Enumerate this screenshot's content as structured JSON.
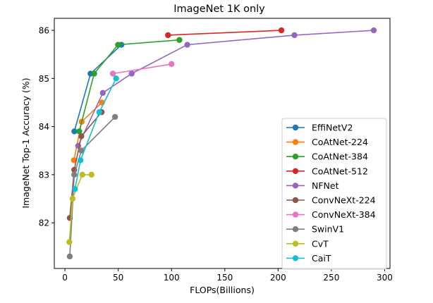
{
  "chart_data": {
    "type": "line",
    "title": "ImageNet 1K only",
    "xlabel": "FLOPs(Billions)",
    "ylabel": "ImageNet Top-1 Accuracy (%)",
    "xlim": [
      -10,
      305
    ],
    "ylim": [
      81.05,
      86.25
    ],
    "xticks": [
      0,
      50,
      100,
      150,
      200,
      250,
      300
    ],
    "yticks": [
      82,
      83,
      84,
      85,
      86
    ],
    "grid": false,
    "legend_position": "lower-right",
    "series": [
      {
        "name": "EffiNetV2",
        "color": "#1f77b4",
        "x": [
          8.8,
          24,
          53
        ],
        "y": [
          83.9,
          85.1,
          85.7
        ]
      },
      {
        "name": "CoAtNet-224",
        "color": "#ff7f0e",
        "x": [
          8.4,
          15.7,
          34.7
        ],
        "y": [
          83.3,
          84.1,
          84.5
        ]
      },
      {
        "name": "CoAtNet-384",
        "color": "#2ca02c",
        "x": [
          13.4,
          27.4,
          49.8,
          107.4
        ],
        "y": [
          83.9,
          85.1,
          85.7,
          85.8
        ]
      },
      {
        "name": "CoAtNet-512",
        "color": "#d62728",
        "x": [
          96.7,
          203.1
        ],
        "y": [
          85.9,
          86.0
        ]
      },
      {
        "name": "NFNet",
        "color": "#9467bd",
        "x": [
          12.4,
          35.5,
          62.6,
          114.8,
          215.3,
          289.8
        ],
        "y": [
          83.6,
          84.7,
          85.1,
          85.7,
          85.9,
          86.0
        ]
      },
      {
        "name": "ConvNeXt-224",
        "color": "#8c564b",
        "x": [
          4.5,
          8.7,
          15.4,
          34.4
        ],
        "y": [
          82.1,
          83.1,
          83.8,
          84.3
        ]
      },
      {
        "name": "ConvNeXt-384",
        "color": "#e377c2",
        "x": [
          45.0,
          100.0
        ],
        "y": [
          85.1,
          85.3
        ]
      },
      {
        "name": "SwinV1",
        "color": "#7f7f7f",
        "x": [
          4.5,
          8.7,
          15.4,
          47.0
        ],
        "y": [
          81.3,
          83.0,
          83.5,
          84.2
        ]
      },
      {
        "name": "CvT",
        "color": "#bcbd22",
        "x": [
          4.1,
          7.1,
          16.3,
          24.9
        ],
        "y": [
          81.6,
          82.5,
          83.0,
          83.0
        ]
      },
      {
        "name": "CaiT",
        "color": "#17becf",
        "x": [
          9.4,
          14.6,
          32.2,
          48.0
        ],
        "y": [
          82.7,
          83.3,
          84.3,
          85.0
        ]
      }
    ]
  }
}
